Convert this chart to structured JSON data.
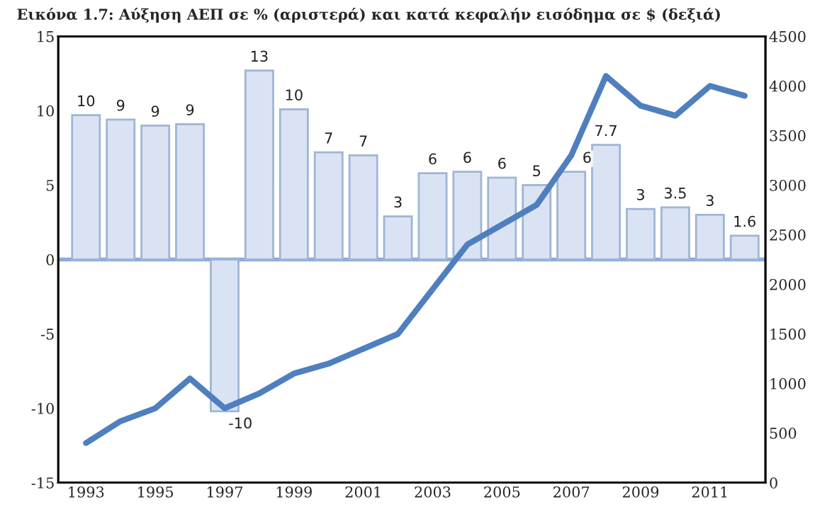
{
  "chart_data": {
    "type": "bar",
    "title": "Εικόνα 1.7: Αύξηση ΑΕΠ σε % (αριστερά) και κατά κεφαλήν εισόδημα σε $ (δεξιά)",
    "categories": [
      "1993",
      null,
      "1995",
      null,
      "1997",
      null,
      "1999",
      null,
      "2001",
      null,
      "2003",
      null,
      "2005",
      null,
      "2007",
      null,
      "2009",
      null,
      "2011",
      null
    ],
    "series": [
      {
        "color": "#dae3f3",
        "values": [
          9.7,
          9.4,
          9.0,
          9.1,
          -10.2,
          12.7,
          10.1,
          7.2,
          7.0,
          2.9,
          5.8,
          5.9,
          5.5,
          5.0,
          5.9,
          7.7,
          3.4,
          3.5,
          3.0,
          1.6
        ],
        "value_labels": [
          "10",
          "9",
          "9",
          "9",
          "-10",
          "13",
          "10",
          "7",
          "7",
          "3",
          "6",
          "6",
          "6",
          "5",
          "6",
          "7.7",
          "3",
          "3.5",
          "3",
          "1.6"
        ]
      },
      {
        "type": "line",
        "axis": "y2",
        "color": "#4f7fbf",
        "values": [
          400,
          620,
          750,
          1050,
          750,
          900,
          1100,
          1200,
          1350,
          1500,
          1950,
          2400,
          2600,
          2800,
          3300,
          4100,
          3800,
          3700,
          4000,
          3900
        ]
      }
    ],
    "ylim": [
      -15,
      15
    ],
    "yticks": [
      -15,
      -10,
      -5,
      0,
      5,
      10,
      15
    ],
    "y2lim": [
      0,
      4500
    ],
    "y2ticks": [
      0,
      500,
      1000,
      1500,
      2000,
      2500,
      3000,
      3500,
      4000,
      4500
    ],
    "ref_lines": [
      {
        "axis": "y",
        "value": 0,
        "color": "#8faadc"
      }
    ],
    "grid": false,
    "legend": false
  }
}
